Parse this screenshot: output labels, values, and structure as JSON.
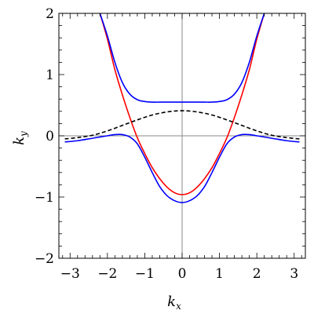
{
  "chart_data": {
    "type": "line",
    "title": "",
    "xlabel": "k",
    "xlabel_sub": "x",
    "ylabel": "k",
    "ylabel_sub": "y",
    "xlim": [
      -3.3,
      3.3
    ],
    "ylim": [
      -2,
      2
    ],
    "xticks": [
      -3,
      -2,
      -1,
      0,
      1,
      2,
      3
    ],
    "xtick_labels": [
      "−3",
      "−2",
      "−1",
      "0",
      "1",
      "2",
      "3"
    ],
    "yticks": [
      -2,
      -1,
      0,
      1,
      2
    ],
    "ytick_labels": [
      "−2",
      "−1",
      "0",
      "1",
      "2"
    ],
    "grid": false,
    "axis_lines_at_zero": true,
    "legend": "none",
    "series": [
      {
        "color": "#ff0000",
        "style": "solid",
        "x": [
          -2.2,
          -2.0,
          -1.8,
          -1.6,
          -1.4,
          -1.2,
          -1.0,
          -0.8,
          -0.6,
          -0.4,
          -0.2,
          0.0,
          0.2,
          0.4,
          0.6,
          0.8,
          1.0,
          1.2,
          1.4,
          1.6,
          1.8,
          2.0,
          2.2
        ],
        "y": [
          2.0,
          1.58,
          1.08,
          0.67,
          0.3,
          -0.03,
          -0.29,
          -0.52,
          -0.7,
          -0.84,
          -0.93,
          -0.96,
          -0.93,
          -0.84,
          -0.7,
          -0.52,
          -0.29,
          -0.03,
          0.3,
          0.67,
          1.08,
          1.58,
          2.0
        ]
      },
      {
        "color": "#0000ff",
        "style": "solid",
        "x": [
          -2.2,
          -2.0,
          -1.8,
          -1.6,
          -1.4,
          -1.2,
          -1.0,
          -0.8,
          -0.6,
          -0.4,
          -0.2,
          0.0,
          0.2,
          0.4,
          0.6,
          0.8,
          1.0,
          1.2,
          1.4,
          1.6,
          1.8,
          2.0,
          2.2
        ],
        "y": [
          2.0,
          1.63,
          1.2,
          0.87,
          0.68,
          0.59,
          0.56,
          0.55,
          0.55,
          0.55,
          0.55,
          0.55,
          0.55,
          0.55,
          0.55,
          0.55,
          0.56,
          0.59,
          0.68,
          0.87,
          1.2,
          1.63,
          2.0
        ]
      },
      {
        "color": "#0000ff",
        "style": "solid",
        "x": [
          -3.14,
          -2.8,
          -2.4,
          -2.0,
          -1.8,
          -1.6,
          -1.4,
          -1.2,
          -1.0,
          -0.8,
          -0.6,
          -0.4,
          -0.2,
          0.0,
          0.2,
          0.4,
          0.6,
          0.8,
          1.0,
          1.2,
          1.4,
          1.6,
          1.8,
          2.0,
          2.4,
          2.8,
          3.14
        ],
        "y": [
          -0.1,
          -0.08,
          -0.04,
          0.0,
          0.02,
          0.02,
          -0.02,
          -0.13,
          -0.35,
          -0.6,
          -0.83,
          -0.98,
          -1.06,
          -1.09,
          -1.06,
          -0.98,
          -0.83,
          -0.6,
          -0.35,
          -0.13,
          -0.02,
          0.02,
          0.02,
          0.0,
          -0.04,
          -0.08,
          -0.1
        ]
      },
      {
        "color": "#000000",
        "style": "dashed",
        "x": [
          -3.14,
          -2.8,
          -2.4,
          -2.0,
          -1.6,
          -1.2,
          -0.8,
          -0.4,
          0.0,
          0.4,
          0.8,
          1.2,
          1.6,
          2.0,
          2.4,
          2.8,
          3.14
        ],
        "y": [
          -0.05,
          -0.03,
          0.01,
          0.08,
          0.17,
          0.26,
          0.34,
          0.39,
          0.41,
          0.39,
          0.34,
          0.26,
          0.17,
          0.08,
          0.01,
          -0.03,
          -0.05
        ]
      }
    ]
  }
}
